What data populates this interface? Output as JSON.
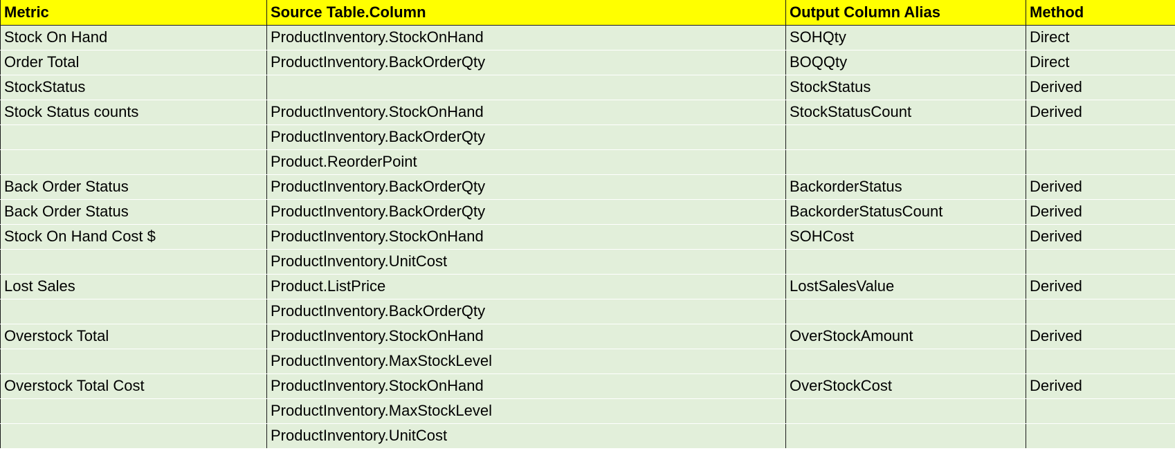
{
  "colors": {
    "header_bg": "#ffff00",
    "row_bg": "#e2efda",
    "grid_line": "#1a1a1a"
  },
  "table": {
    "headers": [
      "Metric",
      "Source Table.Column",
      "Output Column Alias",
      "Method"
    ],
    "rows": [
      [
        "Stock On Hand",
        "ProductInventory.StockOnHand",
        "SOHQty",
        "Direct"
      ],
      [
        "Order Total",
        "ProductInventory.BackOrderQty",
        "BOQQty",
        "Direct"
      ],
      [
        "StockStatus",
        "",
        "StockStatus",
        "Derived"
      ],
      [
        "Stock Status counts",
        "ProductInventory.StockOnHand",
        "StockStatusCount",
        "Derived"
      ],
      [
        "",
        "ProductInventory.BackOrderQty",
        "",
        ""
      ],
      [
        "",
        "Product.ReorderPoint",
        "",
        ""
      ],
      [
        "Back Order Status",
        "ProductInventory.BackOrderQty",
        "BackorderStatus",
        "Derived"
      ],
      [
        "Back Order Status",
        "ProductInventory.BackOrderQty",
        "BackorderStatusCount",
        "Derived"
      ],
      [
        "Stock On Hand Cost $",
        "ProductInventory.StockOnHand",
        "SOHCost",
        "Derived"
      ],
      [
        "",
        "ProductInventory.UnitCost",
        "",
        ""
      ],
      [
        "Lost Sales",
        "Product.ListPrice",
        "LostSalesValue",
        "Derived"
      ],
      [
        "",
        "ProductInventory.BackOrderQty",
        "",
        ""
      ],
      [
        "Overstock Total",
        "ProductInventory.StockOnHand",
        "OverStockAmount",
        "Derived"
      ],
      [
        "",
        "ProductInventory.MaxStockLevel",
        "",
        ""
      ],
      [
        "Overstock Total Cost",
        "ProductInventory.StockOnHand",
        "OverStockCost",
        "Derived"
      ],
      [
        "",
        "ProductInventory.MaxStockLevel",
        "",
        ""
      ],
      [
        "",
        "ProductInventory.UnitCost",
        "",
        ""
      ]
    ]
  }
}
